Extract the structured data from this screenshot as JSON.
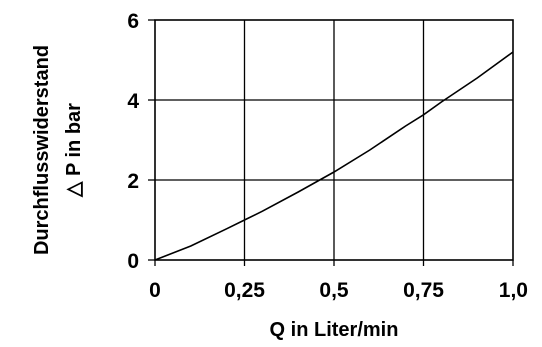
{
  "chart_data": {
    "type": "line",
    "xlabel": "Q in Liter/min",
    "ylabel_line1": "Durchflusswiderstand",
    "ylabel_line2": "△ P in bar",
    "xlim": [
      0,
      1.0
    ],
    "ylim": [
      0,
      6
    ],
    "x_ticks": [
      {
        "value": 0,
        "label": "0"
      },
      {
        "value": 0.25,
        "label": "0,25"
      },
      {
        "value": 0.5,
        "label": "0,5"
      },
      {
        "value": 0.75,
        "label": "0,75"
      },
      {
        "value": 1.0,
        "label": "1,0"
      }
    ],
    "y_ticks": [
      {
        "value": 0,
        "label": "0"
      },
      {
        "value": 2,
        "label": "2"
      },
      {
        "value": 4,
        "label": "4"
      },
      {
        "value": 6,
        "label": "6"
      }
    ],
    "grid": true,
    "legend": "none",
    "series": [
      {
        "x": [
          0,
          0.1,
          0.2,
          0.25,
          0.3,
          0.4,
          0.5,
          0.6,
          0.7,
          0.75,
          0.8,
          0.9,
          1.0
        ],
        "y": [
          0,
          0.35,
          0.78,
          1.0,
          1.22,
          1.7,
          2.2,
          2.75,
          3.35,
          3.63,
          3.95,
          4.55,
          5.2
        ]
      }
    ]
  }
}
